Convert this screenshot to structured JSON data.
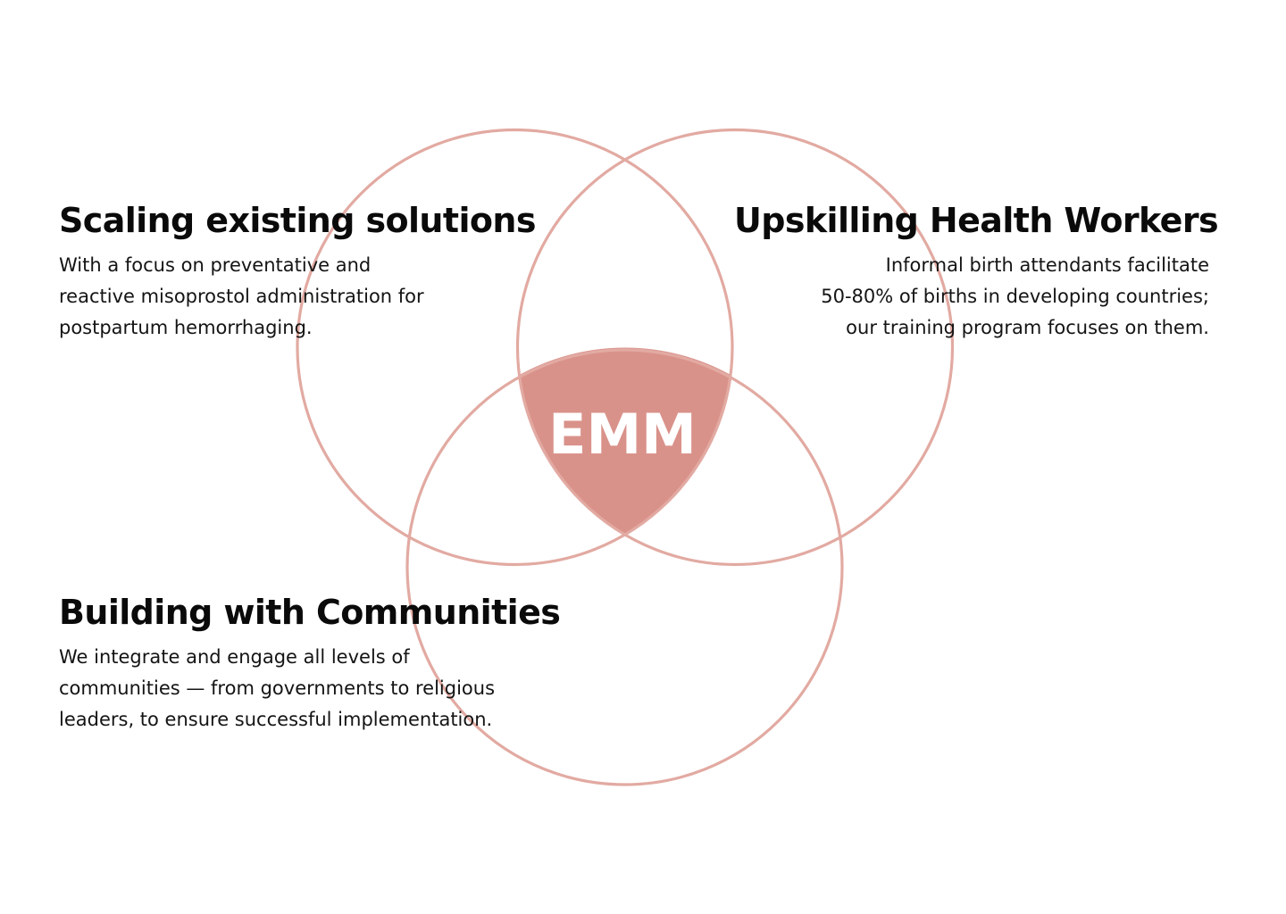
{
  "diagram": {
    "center_label": "EMM",
    "colors": {
      "circle_stroke": "#e2aaa2",
      "intersection_fill": "#d9928a",
      "center_text": "#ffffff",
      "heading_text": "#0a0a0a",
      "body_text": "#141414"
    }
  },
  "sections": {
    "scaling": {
      "title": "Scaling existing solutions",
      "lines": [
        "With a focus on preventative and",
        "reactive misoprostol administration for",
        "postpartum hemorrhaging."
      ]
    },
    "upskilling": {
      "title": "Upskilling Health Workers",
      "lines": [
        "Informal birth attendants facilitate",
        "50-80% of births in developing countries;",
        "our training program focuses on them."
      ]
    },
    "communities": {
      "title": "Building with Communities",
      "lines": [
        "We integrate and engage all levels of",
        "communities — from governments to religious",
        "leaders, to ensure successful implementation."
      ]
    }
  }
}
